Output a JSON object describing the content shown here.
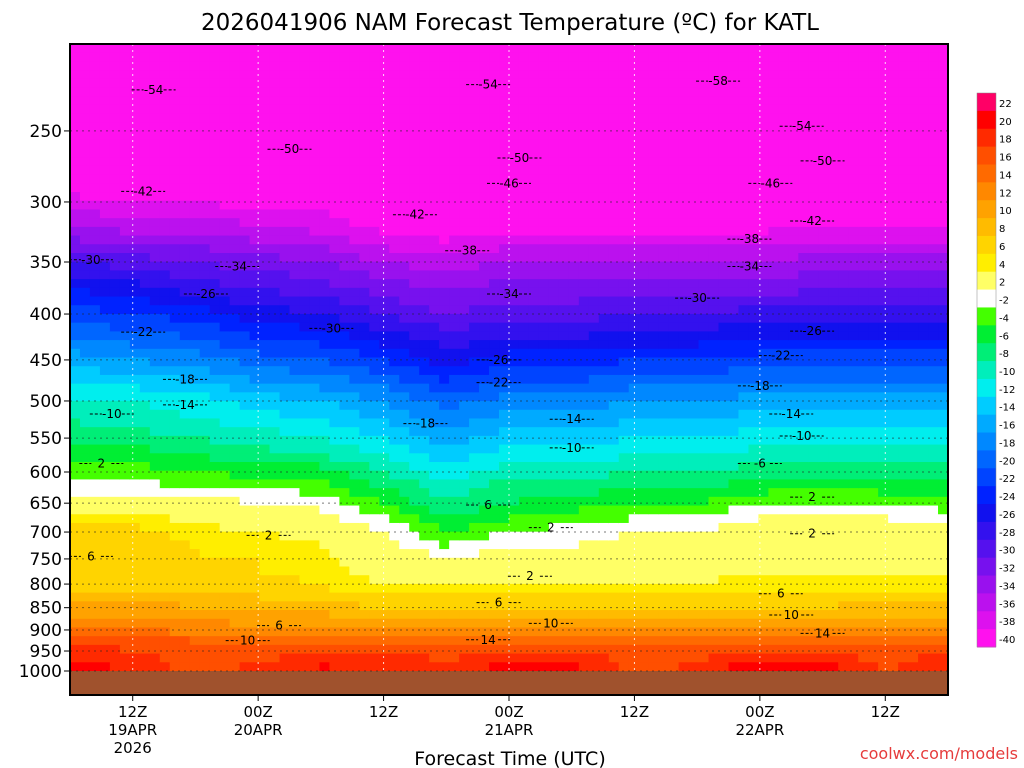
{
  "chart_data": {
    "type": "heatmap",
    "title": "2026041906 NAM Forecast Temperature (ºC) for KATL",
    "xlabel": "Forecast Time (UTC)",
    "ylabel": "",
    "credit": "coolwx.com/models",
    "y_axis": {
      "scale": "log",
      "inverted": true,
      "range": [
        1000,
        200
      ],
      "ticks": [
        "250",
        "300",
        "350",
        "400",
        "450",
        "500",
        "550",
        "600",
        "650",
        "700",
        "750",
        "800",
        "850",
        "900",
        "950",
        "1000"
      ]
    },
    "x_axis": {
      "ticks": [
        {
          "hour": 6,
          "label1": "12Z",
          "label2": "19APR",
          "label3": "2026"
        },
        {
          "hour": 18,
          "label1": "00Z",
          "label2": "20APR",
          "label3": ""
        },
        {
          "hour": 30,
          "label1": "12Z",
          "label2": "",
          "label3": ""
        },
        {
          "hour": 42,
          "label1": "00Z",
          "label2": "21APR",
          "label3": ""
        },
        {
          "hour": 54,
          "label1": "12Z",
          "label2": "",
          "label3": ""
        },
        {
          "hour": 66,
          "label1": "00Z",
          "label2": "22APR",
          "label3": ""
        },
        {
          "hour": 78,
          "label1": "12Z",
          "label2": "",
          "label3": ""
        }
      ],
      "range": [
        0,
        84
      ]
    },
    "colorbar": {
      "labels": [
        "22",
        "20",
        "18",
        "16",
        "14",
        "12",
        "10",
        "8",
        "6",
        "4",
        "2",
        "-2",
        "-4",
        "-6",
        "-8",
        "-10",
        "-12",
        "-14",
        "-16",
        "-18",
        "-20",
        "-22",
        "-24",
        "-26",
        "-28",
        "-30",
        "-32",
        "-34",
        "-36",
        "-38",
        "-40"
      ],
      "colors": [
        "#ff0066",
        "#ff0000",
        "#ff2a00",
        "#ff4f00",
        "#ff6a00",
        "#ff8800",
        "#ffa200",
        "#ffbb00",
        "#ffd400",
        "#ffee00",
        "#ffff66",
        "#ffffff",
        "#44ff00",
        "#00ee33",
        "#00ee77",
        "#00eebb",
        "#00eeee",
        "#00ccff",
        "#00aaff",
        "#0088ff",
        "#0066ff",
        "#0044ff",
        "#0022ff",
        "#1111ee",
        "#3311ee",
        "#5511ee",
        "#7711ee",
        "#9911ee",
        "#bb11ee",
        "#dd11ee",
        "#ff11ee"
      ]
    },
    "levels": [
      1000,
      975,
      950,
      925,
      900,
      875,
      850,
      825,
      800,
      775,
      750,
      725,
      700,
      675,
      650,
      625,
      600,
      575,
      550,
      525,
      500,
      475,
      450,
      425,
      400,
      375,
      350,
      325,
      300,
      275,
      250,
      225,
      200
    ],
    "times": [
      0,
      6,
      12,
      18,
      24,
      30,
      36,
      42,
      48,
      54,
      60,
      66,
      72,
      78,
      84
    ],
    "temperature_ref": [
      17,
      16,
      15,
      13,
      10,
      8,
      6,
      4,
      2,
      1,
      0,
      -1,
      -2,
      -4,
      -6,
      -8,
      -10,
      -12,
      -14,
      -16,
      -18,
      -21,
      -24,
      -27,
      -30,
      -33,
      -36,
      -40,
      -43,
      -47,
      -51,
      -55,
      -58
    ],
    "temperature_anomaly": [
      [
        2,
        1,
        -2,
        0,
        2,
        1,
        -1,
        3,
        2,
        -2,
        0,
        3,
        2,
        -1,
        1
      ],
      [
        2,
        1,
        -1,
        0,
        1,
        1,
        0,
        2,
        2,
        -1,
        0,
        2,
        2,
        -1,
        1
      ],
      [
        2,
        1,
        0,
        0,
        1,
        1,
        0,
        1,
        1,
        0,
        0,
        1,
        1,
        0,
        1
      ],
      [
        2,
        2,
        1,
        0,
        0,
        0,
        0,
        0,
        0,
        0,
        0,
        0,
        0,
        0,
        0
      ],
      [
        2,
        2,
        1,
        1,
        0,
        0,
        0,
        0,
        0,
        0,
        0,
        0,
        0,
        0,
        0
      ],
      [
        2,
        2,
        2,
        1,
        1,
        0,
        0,
        0,
        0,
        0,
        0,
        0,
        0,
        0,
        0
      ],
      [
        3,
        3,
        2,
        1,
        1,
        0,
        0,
        0,
        0,
        0,
        0,
        0,
        0,
        1,
        1
      ],
      [
        3,
        3,
        3,
        2,
        1,
        0,
        0,
        0,
        0,
        0,
        0,
        1,
        1,
        1,
        1
      ],
      [
        3,
        3,
        3,
        3,
        2,
        0,
        -1,
        -1,
        -1,
        0,
        0,
        1,
        1,
        1,
        1
      ],
      [
        4,
        4,
        3,
        3,
        2,
        0,
        -1,
        -1,
        -1,
        0,
        0,
        1,
        1,
        1,
        1
      ],
      [
        5,
        5,
        4,
        4,
        3,
        0,
        -2,
        -1,
        -1,
        0,
        0,
        1,
        1,
        1,
        1
      ],
      [
        6,
        6,
        5,
        4,
        3,
        0,
        -3,
        -1,
        -1,
        0,
        0,
        2,
        2,
        1,
        1
      ],
      [
        7,
        7,
        5,
        4,
        3,
        0,
        -4,
        -2,
        -1,
        0,
        0,
        2,
        2,
        2,
        1
      ],
      [
        7,
        7,
        5,
        4,
        3,
        0,
        -4,
        -2,
        -1,
        0,
        0,
        2,
        2,
        2,
        1
      ],
      [
        6,
        6,
        5,
        4,
        3,
        0,
        -4,
        -2,
        -1,
        0,
        0,
        2,
        2,
        2,
        1
      ],
      [
        5,
        5,
        4,
        4,
        3,
        0,
        -3,
        -1,
        -1,
        0,
        0,
        1,
        2,
        1,
        1
      ],
      [
        5,
        5,
        4,
        3,
        3,
        0,
        -3,
        -1,
        -1,
        0,
        0,
        1,
        1,
        1,
        1
      ],
      [
        5,
        5,
        4,
        3,
        2,
        0,
        -3,
        -1,
        -1,
        0,
        0,
        1,
        1,
        1,
        1
      ],
      [
        5,
        5,
        4,
        3,
        2,
        0,
        -3,
        -1,
        -1,
        0,
        0,
        1,
        1,
        1,
        1
      ],
      [
        6,
        5,
        4,
        3,
        2,
        0,
        -3,
        -1,
        -1,
        0,
        0,
        1,
        1,
        1,
        1
      ],
      [
        6,
        6,
        5,
        3,
        2,
        0,
        -3,
        -1,
        -1,
        0,
        0,
        1,
        1,
        1,
        1
      ],
      [
        7,
        6,
        5,
        3,
        2,
        0,
        -3,
        -1,
        -1,
        0,
        0,
        1,
        1,
        1,
        1
      ],
      [
        7,
        6,
        5,
        3,
        2,
        0,
        -3,
        -1,
        -1,
        0,
        0,
        1,
        1,
        1,
        1
      ],
      [
        7,
        6,
        5,
        3,
        2,
        0,
        -2,
        -1,
        -1,
        0,
        0,
        1,
        1,
        1,
        1
      ],
      [
        7,
        6,
        5,
        3,
        2,
        0,
        -2,
        -1,
        -1,
        0,
        0,
        1,
        1,
        1,
        1
      ],
      [
        7,
        6,
        4,
        3,
        2,
        0,
        -1,
        0,
        0,
        0,
        0,
        0,
        1,
        1,
        1
      ],
      [
        6,
        5,
        4,
        3,
        2,
        0,
        -1,
        0,
        0,
        0,
        0,
        0,
        1,
        1,
        1
      ],
      [
        5,
        4,
        4,
        3,
        2,
        0,
        -1,
        0,
        0,
        0,
        0,
        0,
        1,
        1,
        1
      ],
      [
        4,
        3,
        3,
        2,
        2,
        0,
        0,
        0,
        0,
        0,
        0,
        0,
        1,
        1,
        1
      ],
      [
        3,
        2,
        2,
        2,
        1,
        0,
        0,
        0,
        0,
        0,
        0,
        0,
        0,
        0,
        0
      ],
      [
        2,
        1,
        1,
        1,
        1,
        0,
        0,
        0,
        0,
        0,
        0,
        0,
        0,
        0,
        0
      ],
      [
        1,
        1,
        1,
        1,
        0,
        0,
        0,
        0,
        0,
        0,
        0,
        0,
        0,
        0,
        0
      ],
      [
        0,
        0,
        0,
        0,
        0,
        0,
        0,
        0,
        0,
        0,
        0,
        0,
        0,
        0,
        0
      ]
    ],
    "contour_labels": [
      {
        "value": "-54",
        "hour": 8,
        "pressure": 225
      },
      {
        "value": "-54",
        "hour": 40,
        "pressure": 222
      },
      {
        "value": "-58",
        "hour": 62,
        "pressure": 220
      },
      {
        "value": "-50",
        "hour": 21,
        "pressure": 262
      },
      {
        "value": "-50",
        "hour": 43,
        "pressure": 268
      },
      {
        "value": "-54",
        "hour": 70,
        "pressure": 247
      },
      {
        "value": "-50",
        "hour": 72,
        "pressure": 270
      },
      {
        "value": "-42",
        "hour": 7,
        "pressure": 292
      },
      {
        "value": "-46",
        "hour": 42,
        "pressure": 286
      },
      {
        "value": "-46",
        "hour": 67,
        "pressure": 286
      },
      {
        "value": "-42",
        "hour": 33,
        "pressure": 310
      },
      {
        "value": "-42",
        "hour": 71,
        "pressure": 315
      },
      {
        "value": "-38",
        "hour": 38,
        "pressure": 340
      },
      {
        "value": "-38",
        "hour": 65,
        "pressure": 330
      },
      {
        "value": "-30",
        "hour": 2,
        "pressure": 348
      },
      {
        "value": "-34",
        "hour": 16,
        "pressure": 354
      },
      {
        "value": "-34",
        "hour": 65,
        "pressure": 354
      },
      {
        "value": "-26",
        "hour": 13,
        "pressure": 380
      },
      {
        "value": "-34",
        "hour": 42,
        "pressure": 380
      },
      {
        "value": "-30",
        "hour": 60,
        "pressure": 384
      },
      {
        "value": "-22",
        "hour": 7,
        "pressure": 419
      },
      {
        "value": "-30",
        "hour": 25,
        "pressure": 415
      },
      {
        "value": "-26",
        "hour": 71,
        "pressure": 418
      },
      {
        "value": "-22",
        "hour": 68,
        "pressure": 445
      },
      {
        "value": "-26",
        "hour": 41,
        "pressure": 450
      },
      {
        "value": "-18",
        "hour": 11,
        "pressure": 473
      },
      {
        "value": "-22",
        "hour": 41,
        "pressure": 477
      },
      {
        "value": "-18",
        "hour": 66,
        "pressure": 481
      },
      {
        "value": "-14",
        "hour": 11,
        "pressure": 505
      },
      {
        "value": "-10",
        "hour": 4,
        "pressure": 517
      },
      {
        "value": "-14",
        "hour": 69,
        "pressure": 517
      },
      {
        "value": "-18",
        "hour": 34,
        "pressure": 530
      },
      {
        "value": "-14",
        "hour": 48,
        "pressure": 524
      },
      {
        "value": "-10",
        "hour": 70,
        "pressure": 547
      },
      {
        "value": "-10",
        "hour": 48,
        "pressure": 564
      },
      {
        "value": "-6",
        "hour": 66,
        "pressure": 587
      },
      {
        "value": "2",
        "hour": 3,
        "pressure": 587
      },
      {
        "value": "6",
        "hour": 40,
        "pressure": 653
      },
      {
        "value": "2",
        "hour": 71,
        "pressure": 640
      },
      {
        "value": "2",
        "hour": 19,
        "pressure": 706
      },
      {
        "value": "2",
        "hour": 46,
        "pressure": 692
      },
      {
        "value": "2",
        "hour": 71,
        "pressure": 703
      },
      {
        "value": "6",
        "hour": 2,
        "pressure": 745
      },
      {
        "value": "2",
        "hour": 44,
        "pressure": 784
      },
      {
        "value": "6",
        "hour": 41,
        "pressure": 839
      },
      {
        "value": "6",
        "hour": 68,
        "pressure": 820
      },
      {
        "value": "6",
        "hour": 20,
        "pressure": 890
      },
      {
        "value": "10",
        "hour": 46,
        "pressure": 885
      },
      {
        "value": "10",
        "hour": 69,
        "pressure": 866
      },
      {
        "value": "10",
        "hour": 17,
        "pressure": 925
      },
      {
        "value": "14",
        "hour": 40,
        "pressure": 923
      },
      {
        "value": "14",
        "hour": 72,
        "pressure": 908
      }
    ]
  }
}
